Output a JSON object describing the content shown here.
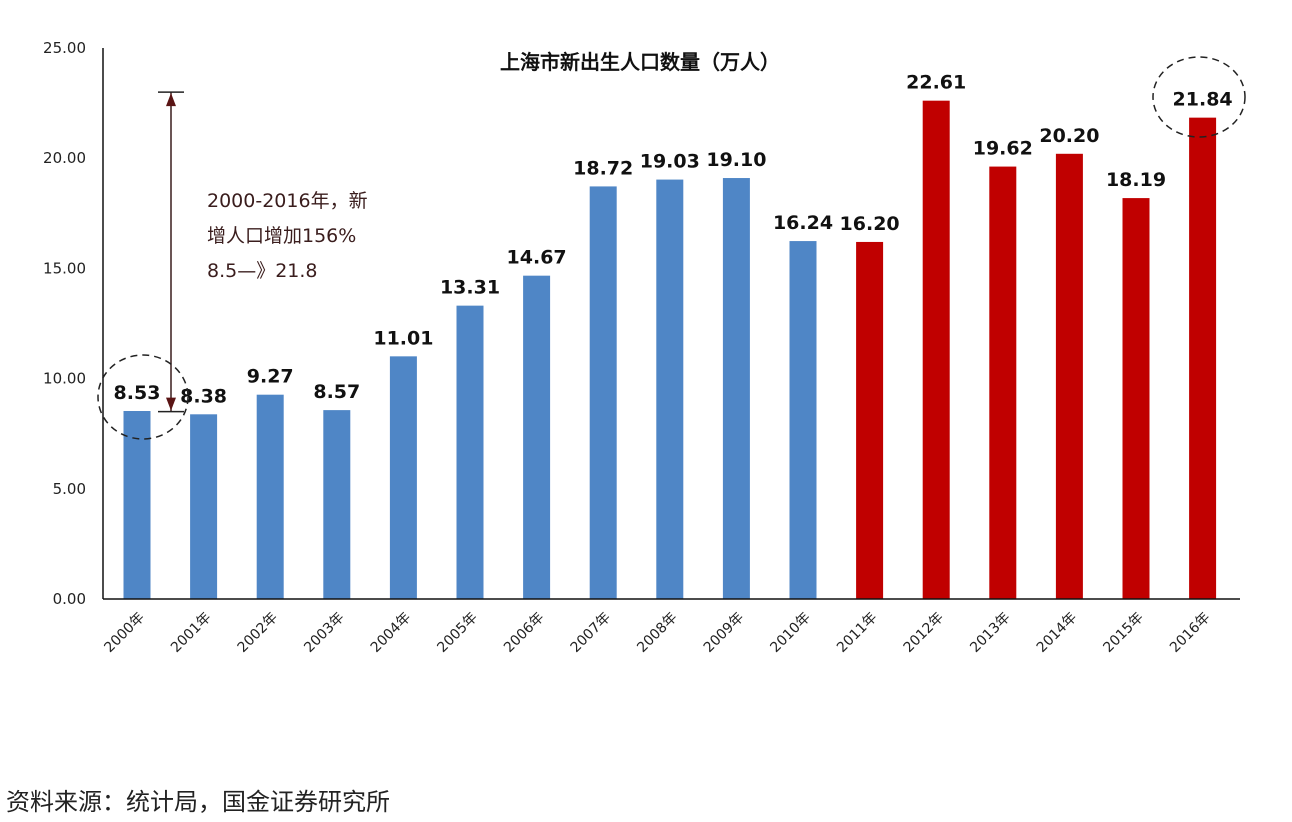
{
  "chart_data": {
    "type": "bar",
    "title": "上海市新出生人口数量（万人）",
    "categories": [
      "2000年",
      "2001年",
      "2002年",
      "2003年",
      "2004年",
      "2005年",
      "2006年",
      "2007年",
      "2008年",
      "2009年",
      "2010年",
      "2011年",
      "2012年",
      "2013年",
      "2014年",
      "2015年",
      "2016年"
    ],
    "values": [
      8.53,
      8.38,
      9.27,
      8.57,
      11.01,
      13.31,
      14.67,
      18.72,
      19.03,
      19.1,
      16.24,
      16.2,
      22.61,
      19.62,
      20.2,
      18.19,
      21.84
    ],
    "data_labels": [
      "8.53",
      "8.38",
      "9.27",
      "8.57",
      "11.01",
      "13.31",
      "14.67",
      "18.72",
      "19.03",
      "19.10",
      "16.24",
      "16.20",
      "22.61",
      "19.62",
      "20.20",
      "18.19",
      "21.84"
    ],
    "bar_colors": [
      "#4f86c6",
      "#4f86c6",
      "#4f86c6",
      "#4f86c6",
      "#4f86c6",
      "#4f86c6",
      "#4f86c6",
      "#4f86c6",
      "#4f86c6",
      "#4f86c6",
      "#4f86c6",
      "#c00000",
      "#c00000",
      "#c00000",
      "#c00000",
      "#c00000",
      "#c00000"
    ],
    "ylim": [
      0,
      25
    ],
    "yticks": [
      "0.00",
      "5.00",
      "10.00",
      "15.00",
      "20.00",
      "25.00"
    ],
    "grid": false,
    "xlabel": "",
    "ylabel": "",
    "annotation": {
      "lines": [
        "2000-2016年，新",
        "增人口增加156%",
        "8.5—》21.8"
      ],
      "arrow_from": 8.5,
      "arrow_to": 23.0,
      "highlighted": [
        "2000年",
        "2016年"
      ]
    },
    "source": "资料来源：统计局，国金证券研究所"
  }
}
